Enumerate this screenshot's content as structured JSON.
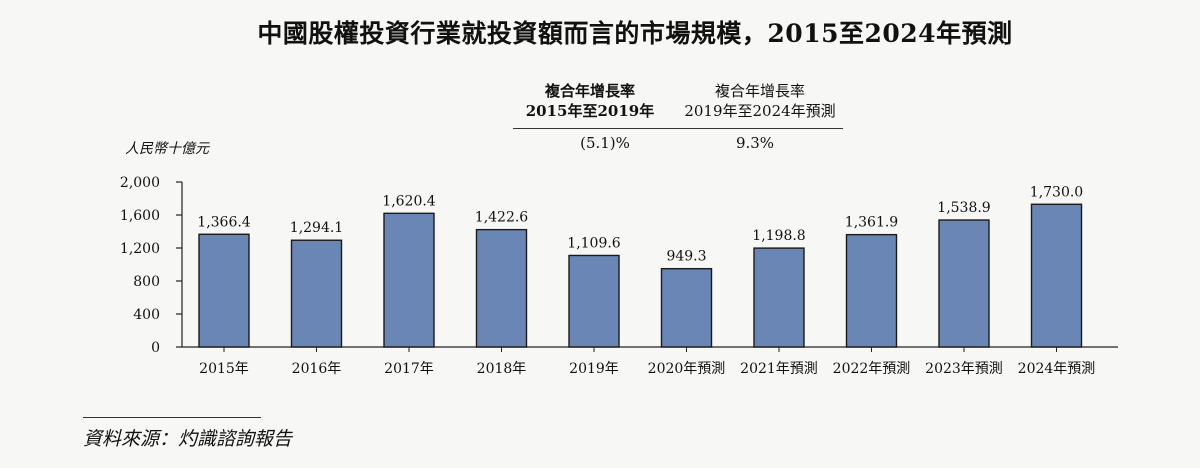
{
  "title": "中國股權投資行業就投資額而言的市場規模，2015至2024年預測",
  "cagr": {
    "col1": {
      "line1": "複合年增長率",
      "line2": "2015年至2019年",
      "value": "(5.1)%"
    },
    "col2": {
      "line1": "複合年增長率",
      "line2": "2019年至2024年預測",
      "value": "9.3%"
    }
  },
  "source": "資料來源：灼識諮詢報告",
  "chart_data": {
    "type": "bar",
    "title": "中國股權投資行業就投資額而言的市場規模，2015至2024年預測",
    "ylabel": "人民幣十億元",
    "xlabel": "",
    "ylim": [
      0,
      2000
    ],
    "yticks": [
      0,
      400,
      800,
      1200,
      1600,
      2000
    ],
    "ytick_labels": [
      "0",
      "400",
      "800",
      "1,200",
      "1,600",
      "2,000"
    ],
    "grid": false,
    "categories": [
      "2015年",
      "2016年",
      "2017年",
      "2018年",
      "2019年",
      "2020年預測",
      "2021年預測",
      "2022年預測",
      "2023年預測",
      "2024年預測"
    ],
    "values": [
      1366.4,
      1294.1,
      1620.4,
      1422.6,
      1109.6,
      949.3,
      1198.8,
      1361.9,
      1538.9,
      1730.0
    ],
    "value_labels": [
      "1,366.4",
      "1,294.1",
      "1,620.4",
      "1,422.6",
      "1,109.6",
      "949.3",
      "1,198.8",
      "1,361.9",
      "1,538.9",
      "1,730.0"
    ],
    "bar_color": "#6a86b5",
    "bar_edge_color": "#1a1a1a"
  }
}
